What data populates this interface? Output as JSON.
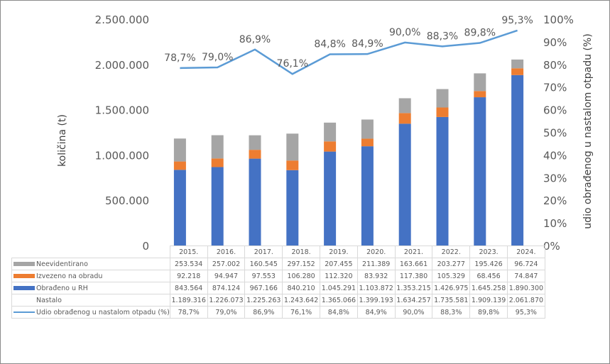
{
  "chart_data": {
    "type": "bar+line",
    "stacked": true,
    "categories": [
      "2015.",
      "2016.",
      "2017.",
      "2018.",
      "2019.",
      "2020.",
      "2021.",
      "2022.",
      "2023.",
      "2024."
    ],
    "series": [
      {
        "name": "Obrađeno u RH",
        "type": "bar",
        "color": "#4472c4",
        "values": [
          843564,
          874124,
          967166,
          840210,
          1045291,
          1103872,
          1353215,
          1426975,
          1645258,
          1890300
        ],
        "display": [
          "843.564",
          "874.124",
          "967.166",
          "840.210",
          "1.045.291",
          "1.103.872",
          "1.353.215",
          "1.426.975",
          "1.645.258",
          "1.890.300"
        ]
      },
      {
        "name": "Izvezeno na obradu",
        "type": "bar",
        "color": "#ed7d31",
        "values": [
          92218,
          94947,
          97553,
          106280,
          112320,
          83932,
          117380,
          105329,
          68456,
          74847
        ],
        "display": [
          "92.218",
          "94.947",
          "97.553",
          "106.280",
          "112.320",
          "83.932",
          "117.380",
          "105.329",
          "68.456",
          "74.847"
        ]
      },
      {
        "name": "Neevidentirano",
        "type": "bar",
        "color": "#a5a5a5",
        "values": [
          253534,
          257002,
          160545,
          297152,
          207455,
          211389,
          163661,
          203277,
          195426,
          96724
        ],
        "display": [
          "253.534",
          "257.002",
          "160.545",
          "297.152",
          "207.455",
          "211.389",
          "163.661",
          "203.277",
          "195.426",
          "96.724"
        ]
      },
      {
        "name": "Nastalo",
        "type": "total",
        "values": [
          1189316,
          1226073,
          1225263,
          1243642,
          1365066,
          1399193,
          1634257,
          1735581,
          1909139,
          2061870
        ],
        "display": [
          "1.189.316",
          "1.226.073",
          "1.225.263",
          "1.243.642",
          "1.365.066",
          "1.399.193",
          "1.634.257",
          "1.735.581",
          "1.909.139",
          "2.061.870"
        ]
      },
      {
        "name": "Udio obrađenog u nastalom otpadu (%)",
        "type": "line",
        "axis": "right",
        "color": "#5b9bd5",
        "values": [
          78.7,
          79.0,
          86.9,
          76.1,
          84.8,
          84.9,
          90.0,
          88.3,
          89.8,
          95.3
        ],
        "display": [
          "78,7%",
          "79,0%",
          "86,9%",
          "76,1%",
          "84,8%",
          "84,9%",
          "90,0%",
          "88,3%",
          "89,8%",
          "95,3%"
        ]
      }
    ],
    "ylabel": "količina (t)",
    "y2label": "udio obrađenog u nastalom otpadu (%)",
    "ylim": [
      0,
      2500000
    ],
    "y2lim": [
      0,
      100
    ],
    "yticks": [
      "0",
      "500.000",
      "1.000.000",
      "1.500.000",
      "2.000.000",
      "2.500.000"
    ],
    "y2ticks": [
      "0%",
      "10%",
      "20%",
      "30%",
      "40%",
      "50%",
      "60%",
      "70%",
      "80%",
      "90%",
      "100%"
    ],
    "legend": "data-table-bottom",
    "grid": false
  }
}
